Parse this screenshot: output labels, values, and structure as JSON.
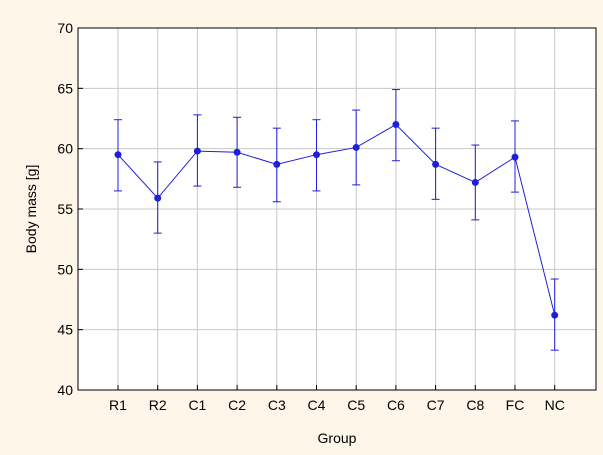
{
  "chart_data": {
    "type": "line",
    "xlabel": "Group",
    "ylabel": "Body mass [g]",
    "ylim": [
      40,
      70
    ],
    "yticks": [
      40,
      45,
      50,
      55,
      60,
      65,
      70
    ],
    "grid": true,
    "categories": [
      "R1",
      "R2",
      "C1",
      "C2",
      "C3",
      "C4",
      "C5",
      "C6",
      "C7",
      "C8",
      "FC",
      "NC"
    ],
    "series": [
      {
        "values": [
          59.5,
          55.9,
          59.8,
          59.7,
          58.7,
          59.5,
          60.1,
          62.0,
          58.7,
          57.2,
          59.3,
          46.2
        ],
        "error_low": [
          56.5,
          53.0,
          56.9,
          56.8,
          55.6,
          56.5,
          57.0,
          59.0,
          55.8,
          54.1,
          56.4,
          43.3
        ],
        "error_high": [
          62.4,
          58.9,
          62.8,
          62.6,
          61.7,
          62.4,
          63.2,
          64.9,
          61.7,
          60.3,
          62.3,
          49.2
        ]
      }
    ],
    "colors": {
      "series": "#1f1fdb",
      "grid": "#c8c8c8",
      "axis": "#000000",
      "plot_bg": "#ffffff",
      "page_bg": "#fdf6e9"
    }
  }
}
